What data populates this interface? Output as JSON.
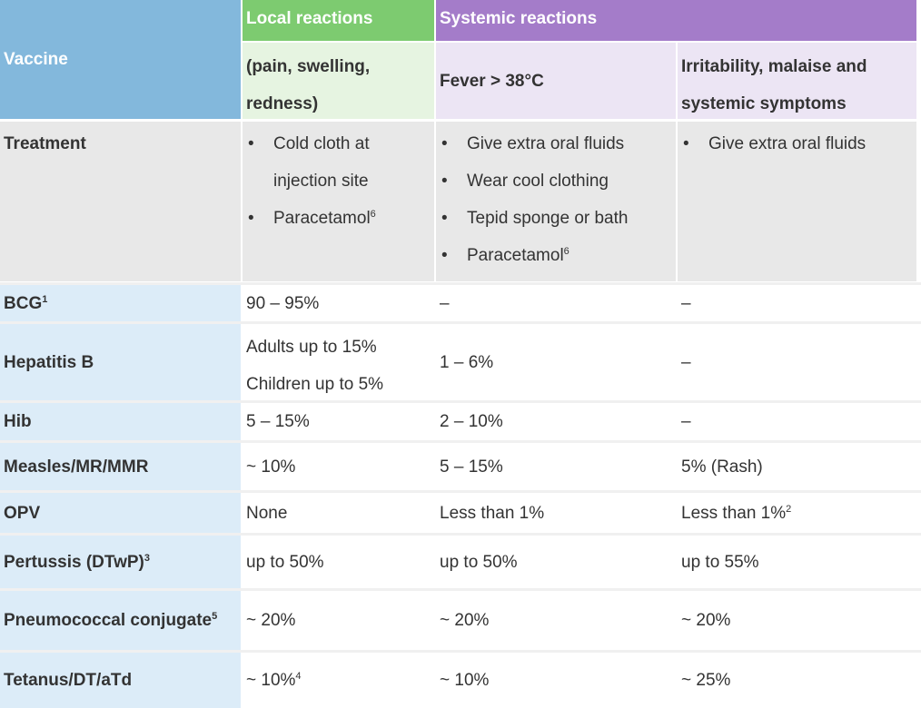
{
  "header": {
    "vaccine": "Vaccine",
    "local": "Local reactions",
    "local_sub": [
      "(pain, swelling,",
      "redness)"
    ],
    "systemic": "Systemic reactions",
    "fever": "Fever > 38°C",
    "irritability": [
      "Irritability, malaise and",
      "systemic symptoms"
    ]
  },
  "treatment": {
    "label": "Treatment",
    "local": {
      "item1": [
        "Cold cloth at",
        "injection site"
      ],
      "item2_text": "Paracetamol",
      "item2_sup": "6"
    },
    "fever": {
      "items": [
        "Give extra oral fluids",
        "Wear cool clothing",
        "Tepid sponge or bath"
      ],
      "item4_text": "Paracetamol",
      "item4_sup": "6"
    },
    "irritability": {
      "items": [
        "Give extra oral fluids"
      ]
    }
  },
  "rows": [
    {
      "name": "BCG",
      "name_sup": "1",
      "local": "90 – 95%",
      "fever": "–",
      "irritability": "–"
    },
    {
      "name": "Hepatitis B",
      "name_sup": "",
      "local_lines": [
        "Adults up to 15%",
        "Children up to 5%"
      ],
      "fever": "1 – 6%",
      "irritability": "–"
    },
    {
      "name": "Hib",
      "name_sup": "",
      "local": "5 – 15%",
      "fever": "2 – 10%",
      "irritability": "–"
    },
    {
      "name": "Measles/MR/MMR",
      "name_sup": "",
      "local": "~ 10%",
      "fever": "5 – 15%",
      "irritability": "5% (Rash)"
    },
    {
      "name": "OPV",
      "name_sup": "",
      "local": "None",
      "fever": "Less than 1%",
      "irritability": "Less than 1%",
      "irritability_sup": "2"
    },
    {
      "name": "Pertussis (DTwP)",
      "name_sup": "3",
      "local": "up to 50%",
      "fever": "up to 50%",
      "irritability": "up to 55%"
    },
    {
      "name": "Pneumococcal conjugate",
      "name_sup": "5",
      "local": "~ 20%",
      "fever": "~ 20%",
      "irritability": "~ 20%"
    },
    {
      "name": "Tetanus/DT/aTd",
      "name_sup": "",
      "local": "~ 10%",
      "local_sup": "4",
      "fever": "~ 10%",
      "irritability": "~ 25%"
    }
  ],
  "colors": {
    "vaccine_header": "#83b8dc",
    "local_header": "#7dcb70",
    "systemic_header": "#a47cc9",
    "label_column": "#dcecf8",
    "treatment_row": "#e8e8e8"
  }
}
